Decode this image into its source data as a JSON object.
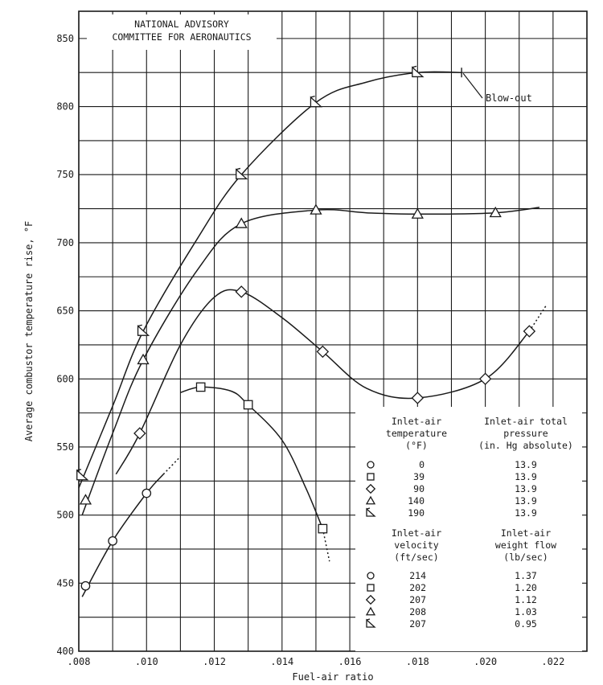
{
  "chart_data": {
    "type": "line",
    "title": "",
    "org_label": [
      "NATIONAL ADVISORY",
      "COMMITTEE FOR AERONAUTICS"
    ],
    "xlabel": "Fuel-air ratio",
    "ylabel": "Average combustor temperature rise, °F",
    "xlim": [
      0.008,
      0.023
    ],
    "ylim": [
      400,
      870
    ],
    "xticks": [
      0.008,
      0.01,
      0.012,
      0.014,
      0.016,
      0.018,
      0.02,
      0.022
    ],
    "xtick_labels": [
      ".008",
      ".010",
      ".012",
      ".014",
      ".016",
      ".018",
      ".020",
      ".022"
    ],
    "yticks": [
      400,
      450,
      500,
      550,
      600,
      650,
      700,
      750,
      800,
      850
    ],
    "ytick_labels": [
      "400",
      "450",
      "500",
      "550",
      "600",
      "650",
      "700",
      "750",
      "800",
      "850"
    ],
    "grid": true,
    "series": [
      {
        "marker": "circle",
        "x": [
          0.0082,
          0.009,
          0.01
        ],
        "y": [
          448,
          481,
          516
        ],
        "curve": [
          [
            0.0081,
            440
          ],
          [
            0.009,
            481
          ],
          [
            0.01,
            516
          ],
          [
            0.0105,
            530
          ]
        ],
        "extension": [
          [
            0.0105,
            530
          ],
          [
            0.011,
            543
          ]
        ]
      },
      {
        "marker": "square",
        "x": [
          0.0116,
          0.013,
          0.0152
        ],
        "y": [
          594,
          581,
          490
        ],
        "curve": [
          [
            0.011,
            590
          ],
          [
            0.0116,
            594
          ],
          [
            0.0125,
            591
          ],
          [
            0.013,
            581
          ],
          [
            0.014,
            555
          ],
          [
            0.0147,
            520
          ],
          [
            0.0152,
            490
          ]
        ],
        "extension": [
          [
            0.0152,
            490
          ],
          [
            0.0154,
            466
          ]
        ]
      },
      {
        "marker": "diamond",
        "x": [
          0.0098,
          0.0128,
          0.0152,
          0.018,
          0.02,
          0.0213
        ],
        "y": [
          560,
          664,
          620,
          586,
          600,
          635
        ],
        "curve": [
          [
            0.0091,
            530
          ],
          [
            0.0098,
            560
          ],
          [
            0.011,
            625
          ],
          [
            0.012,
            660
          ],
          [
            0.0128,
            664
          ],
          [
            0.014,
            645
          ],
          [
            0.0152,
            620
          ],
          [
            0.0165,
            593
          ],
          [
            0.018,
            586
          ],
          [
            0.02,
            600
          ],
          [
            0.0213,
            635
          ]
        ],
        "extension": [
          [
            0.0213,
            635
          ],
          [
            0.0218,
            654
          ]
        ]
      },
      {
        "marker": "triangle",
        "x": [
          0.0082,
          0.0099,
          0.0128,
          0.015,
          0.018,
          0.0203
        ],
        "y": [
          511,
          614,
          714,
          724,
          721,
          722
        ],
        "curve": [
          [
            0.0081,
            500
          ],
          [
            0.009,
            560
          ],
          [
            0.0099,
            614
          ],
          [
            0.0115,
            680
          ],
          [
            0.0128,
            714
          ],
          [
            0.015,
            724
          ],
          [
            0.0165,
            722
          ],
          [
            0.018,
            721
          ],
          [
            0.0203,
            722
          ],
          [
            0.0216,
            726
          ]
        ],
        "extension": []
      },
      {
        "marker": "flagged-triangle",
        "x": [
          0.0081,
          0.0099,
          0.0128,
          0.015,
          0.018
        ],
        "y": [
          529,
          635,
          750,
          803,
          825
        ],
        "curve": [
          [
            0.008,
            520
          ],
          [
            0.009,
            580
          ],
          [
            0.0099,
            635
          ],
          [
            0.0115,
            703
          ],
          [
            0.0128,
            750
          ],
          [
            0.015,
            803
          ],
          [
            0.0165,
            818
          ],
          [
            0.018,
            825
          ],
          [
            0.0193,
            825
          ]
        ],
        "extension": []
      }
    ],
    "annotations": [
      {
        "text": "Blow-out",
        "x": 0.0193,
        "y": 825
      }
    ],
    "legend": {
      "placement": "bottom-right",
      "col1_header": [
        "Inlet-air",
        "temperature",
        "(°F)"
      ],
      "col2_header": [
        "Inlet-air total",
        "pressure",
        "(in. Hg absolute)"
      ],
      "rows1": [
        [
          "0",
          "13.9"
        ],
        [
          "39",
          "13.9"
        ],
        [
          "90",
          "13.9"
        ],
        [
          "140",
          "13.9"
        ],
        [
          "190",
          "13.9"
        ]
      ],
      "col3_header": [
        "Inlet-air",
        "velocity",
        "(ft/sec)"
      ],
      "col4_header": [
        "Inlet-air",
        "weight flow",
        "(lb/sec)"
      ],
      "rows2": [
        [
          "214",
          "1.37"
        ],
        [
          "202",
          "1.20"
        ],
        [
          "207",
          "1.12"
        ],
        [
          "208",
          "1.03"
        ],
        [
          "207",
          "0.95"
        ]
      ],
      "markers": [
        "circle",
        "square",
        "diamond",
        "triangle",
        "flagged-triangle"
      ]
    }
  }
}
